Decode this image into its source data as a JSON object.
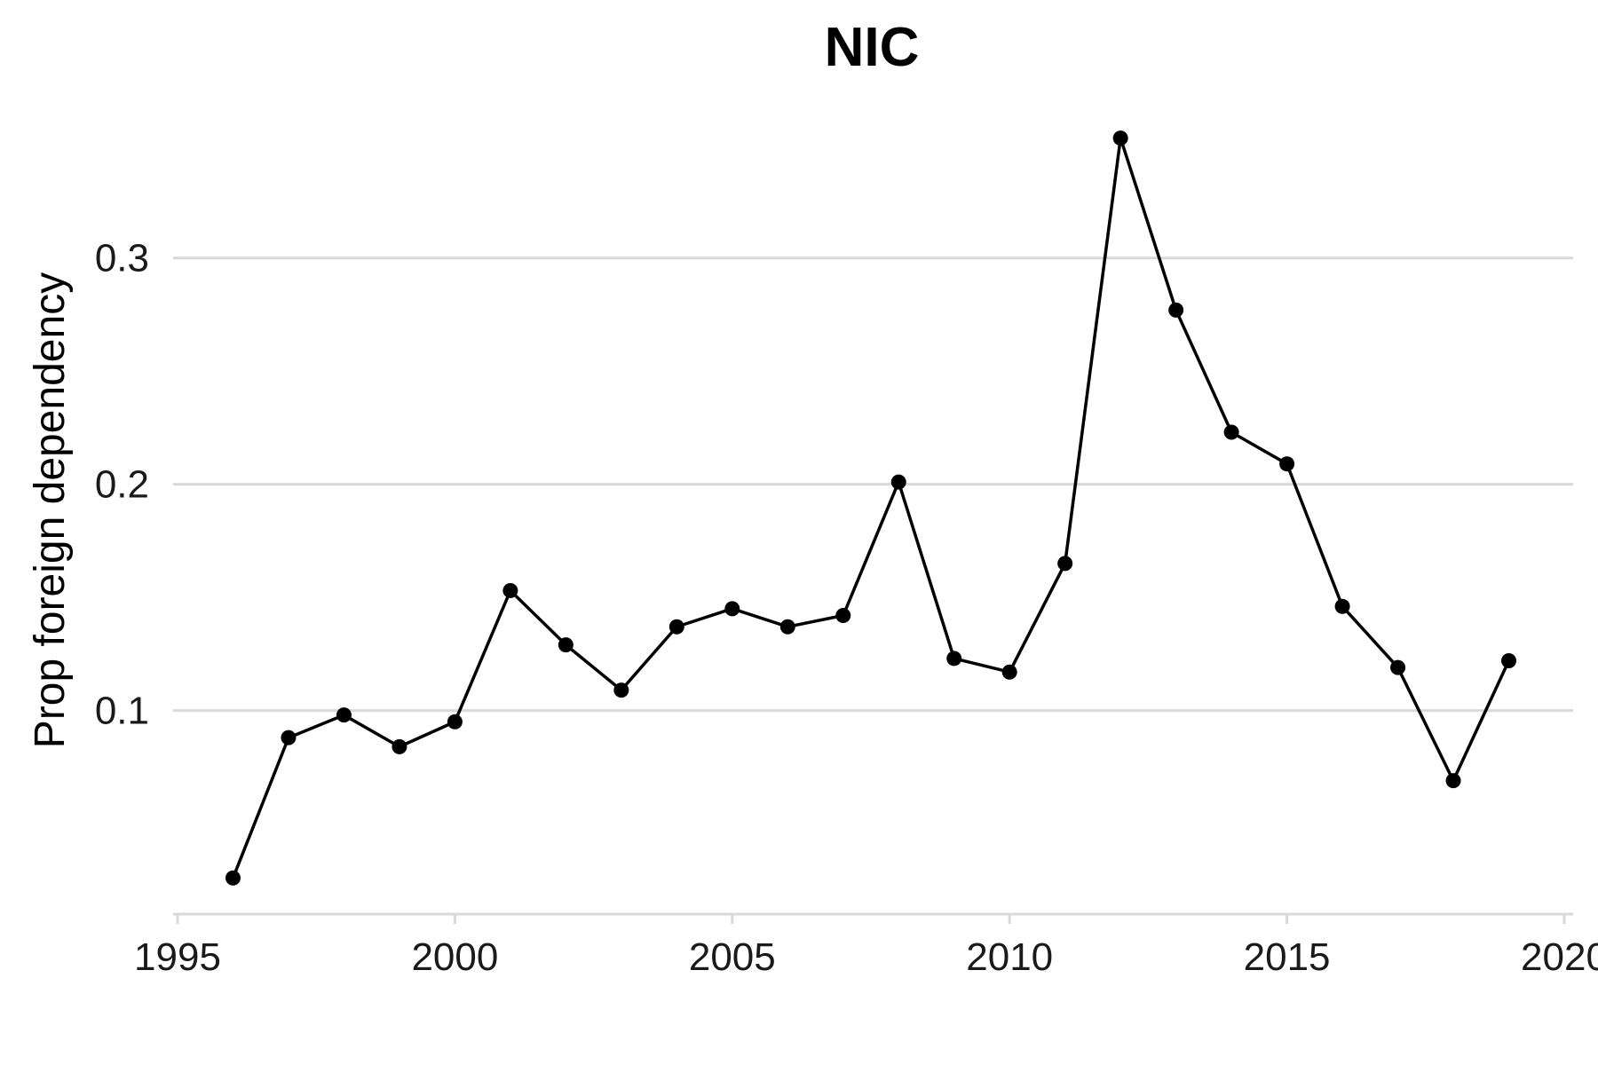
{
  "chart_data": {
    "type": "line",
    "title": "NIC",
    "xlabel": "",
    "ylabel": "Prop foreign dependency",
    "xlim": [
      1995,
      2020
    ],
    "ylim": [
      0.01,
      0.365
    ],
    "x_ticks": [
      1995,
      2000,
      2005,
      2010,
      2015,
      2020
    ],
    "y_ticks": [
      0.1,
      0.2,
      0.3
    ],
    "y_tick_labels": [
      "0.1",
      "0.2",
      "0.3"
    ],
    "grid": "horizontal",
    "series": [
      {
        "x": [
          1996,
          1997,
          1998,
          1999,
          2000,
          2001,
          2002,
          2003,
          2004,
          2005,
          2006,
          2007,
          2008,
          2009,
          2010,
          2011,
          2012,
          2013,
          2014,
          2015,
          2016,
          2017,
          2018,
          2019
        ],
        "values": [
          0.026,
          0.088,
          0.098,
          0.084,
          0.095,
          0.153,
          0.129,
          0.109,
          0.137,
          0.145,
          0.137,
          0.142,
          0.201,
          0.123,
          0.117,
          0.165,
          0.353,
          0.277,
          0.223,
          0.209,
          0.146,
          0.119,
          0.069,
          0.122
        ]
      }
    ],
    "colors": {
      "line": "#000000",
      "grid": "#d9d9d9"
    }
  }
}
